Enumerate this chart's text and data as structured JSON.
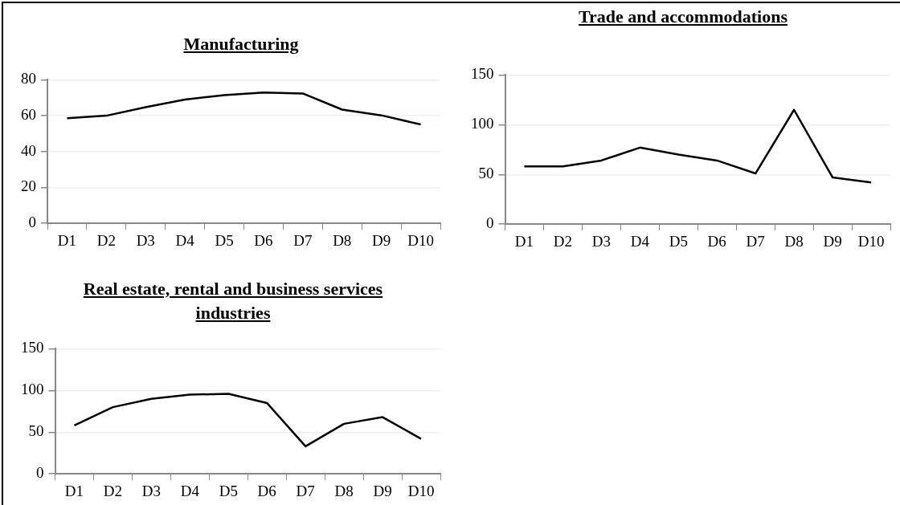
{
  "chart_data": [
    {
      "type": "line",
      "title": "Manufacturing",
      "categories": [
        "D1",
        "D2",
        "D3",
        "D4",
        "D5",
        "D6",
        "D7",
        "D8",
        "D9",
        "D10"
      ],
      "series": [
        {
          "color": "#000000",
          "values": [
            58.6,
            60,
            64.7,
            69,
            71.5,
            72.9,
            72.4,
            63.4,
            60.2,
            55.1
          ]
        }
      ],
      "ylim": [
        0,
        80
      ],
      "yticks": [
        0,
        20,
        40,
        60,
        80
      ],
      "grid": "y",
      "legend": false,
      "marker": "none"
    },
    {
      "type": "line",
      "title": "Trade and accommodations",
      "categories": [
        "D1",
        "D2",
        "D3",
        "D4",
        "D5",
        "D6",
        "D7",
        "D8",
        "D9",
        "D10"
      ],
      "series": [
        {
          "color": "#000000",
          "values": [
            58,
            58,
            64,
            77,
            70,
            64,
            51,
            115,
            47,
            42
          ]
        }
      ],
      "ylim": [
        0,
        150
      ],
      "yticks": [
        0,
        50,
        100,
        150
      ],
      "grid": "y",
      "legend": false,
      "marker": "none"
    },
    {
      "type": "line",
      "title": "Real estate, rental and business services industries",
      "categories": [
        "D1",
        "D2",
        "D3",
        "D4",
        "D5",
        "D6",
        "D7",
        "D8",
        "D9",
        "D10"
      ],
      "series": [
        {
          "color": "#000000",
          "values": [
            58,
            80,
            90,
            95,
            96,
            85,
            33,
            60,
            68,
            42
          ]
        }
      ],
      "ylim": [
        0,
        150
      ],
      "yticks": [
        0,
        50,
        100,
        150
      ],
      "grid": "y",
      "legend": false,
      "marker": "none"
    }
  ]
}
